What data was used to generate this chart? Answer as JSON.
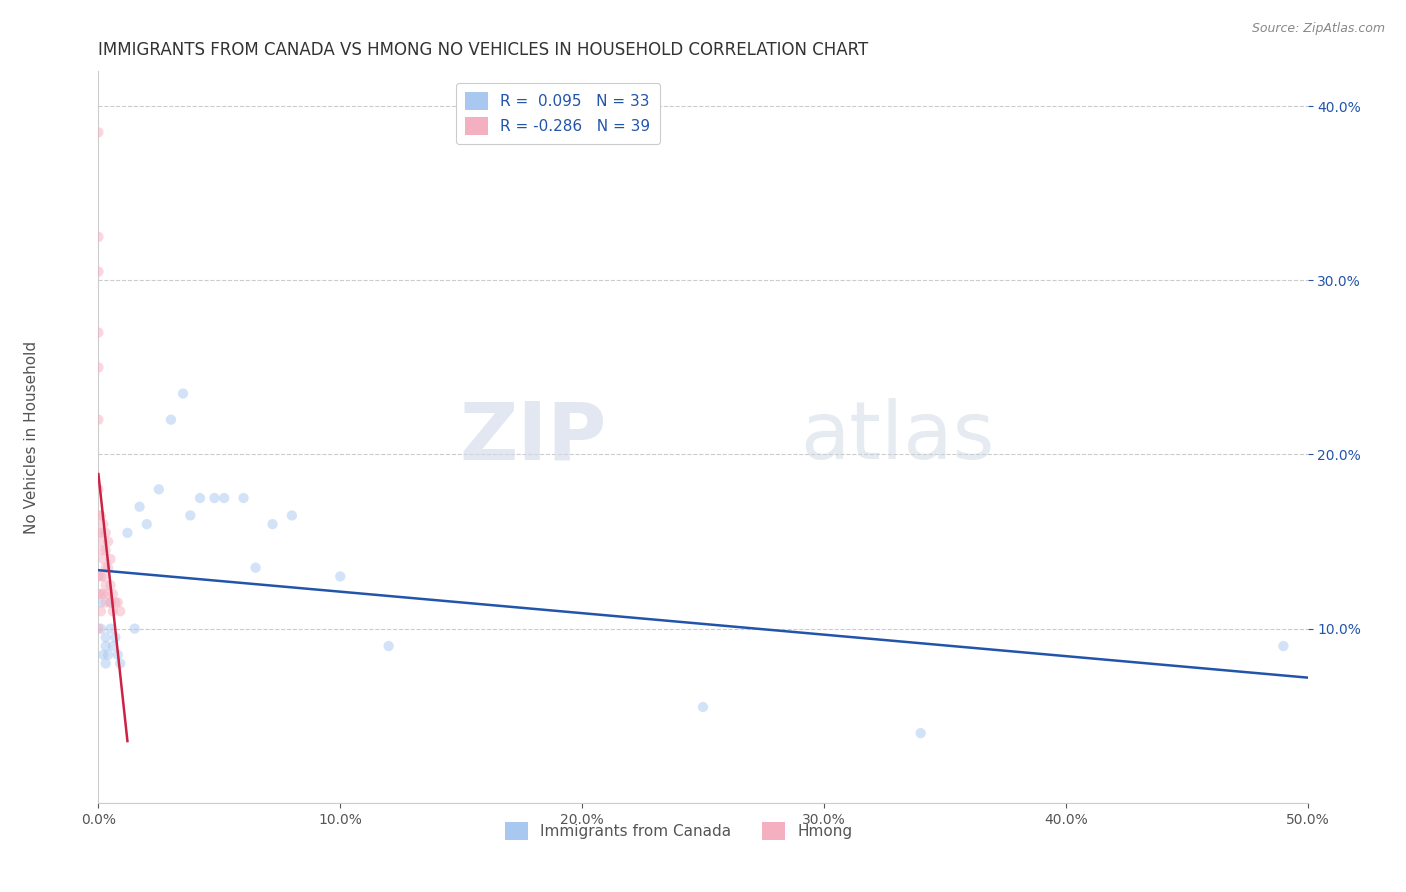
{
  "title": "IMMIGRANTS FROM CANADA VS HMONG NO VEHICLES IN HOUSEHOLD CORRELATION CHART",
  "source": "Source: ZipAtlas.com",
  "ylabel": "No Vehicles in Household",
  "legend_labels": [
    "Immigrants from Canada",
    "Hmong"
  ],
  "canada_R": 0.095,
  "canada_N": 33,
  "hmong_R": -0.286,
  "hmong_N": 39,
  "canada_color": "#a8c8f0",
  "hmong_color": "#f4b0c0",
  "canada_line_color": "#2255aa",
  "hmong_line_color": "#cc2244",
  "xlim": [
    0.0,
    0.5
  ],
  "ylim": [
    0.0,
    0.42
  ],
  "xticks": [
    0.0,
    0.1,
    0.2,
    0.3,
    0.4,
    0.5
  ],
  "yticks_left": [
    0.0,
    0.1,
    0.2,
    0.3,
    0.4
  ],
  "yticks_right": [
    0.1,
    0.2,
    0.3,
    0.4
  ],
  "canada_x": [
    0.001,
    0.001,
    0.002,
    0.003,
    0.003,
    0.003,
    0.004,
    0.005,
    0.005,
    0.006,
    0.007,
    0.008,
    0.009,
    0.012,
    0.015,
    0.017,
    0.02,
    0.025,
    0.03,
    0.035,
    0.038,
    0.042,
    0.048,
    0.052,
    0.06,
    0.065,
    0.072,
    0.08,
    0.1,
    0.12,
    0.25,
    0.34,
    0.49
  ],
  "canada_y": [
    0.115,
    0.1,
    0.085,
    0.09,
    0.095,
    0.08,
    0.085,
    0.115,
    0.1,
    0.09,
    0.095,
    0.085,
    0.08,
    0.155,
    0.1,
    0.17,
    0.16,
    0.18,
    0.22,
    0.235,
    0.165,
    0.175,
    0.175,
    0.175,
    0.175,
    0.135,
    0.16,
    0.165,
    0.13,
    0.09,
    0.055,
    0.04,
    0.09
  ],
  "hmong_x": [
    0.0,
    0.0,
    0.0,
    0.0,
    0.0,
    0.0,
    0.0,
    0.0,
    0.0,
    0.0,
    0.0,
    0.0,
    0.001,
    0.001,
    0.001,
    0.001,
    0.001,
    0.001,
    0.002,
    0.002,
    0.002,
    0.002,
    0.002,
    0.003,
    0.003,
    0.003,
    0.003,
    0.003,
    0.004,
    0.004,
    0.004,
    0.005,
    0.005,
    0.005,
    0.006,
    0.006,
    0.007,
    0.008,
    0.009
  ],
  "hmong_y": [
    0.385,
    0.325,
    0.305,
    0.27,
    0.25,
    0.22,
    0.18,
    0.165,
    0.155,
    0.13,
    0.12,
    0.1,
    0.165,
    0.155,
    0.145,
    0.13,
    0.12,
    0.11,
    0.16,
    0.15,
    0.14,
    0.13,
    0.12,
    0.155,
    0.145,
    0.135,
    0.125,
    0.115,
    0.15,
    0.135,
    0.12,
    0.14,
    0.125,
    0.115,
    0.12,
    0.11,
    0.115,
    0.115,
    0.11
  ],
  "watermark_zip": "ZIP",
  "watermark_atlas": "atlas",
  "background_color": "#ffffff",
  "grid_color": "#cccccc",
  "title_color": "#333333",
  "axis_label_color": "#555555",
  "tick_color": "#555555",
  "right_axis_color": "#2255aa",
  "title_fontsize": 12,
  "label_fontsize": 11,
  "tick_fontsize": 10,
  "scatter_size": 55,
  "scatter_alpha": 0.5,
  "legend_fontsize": 11
}
